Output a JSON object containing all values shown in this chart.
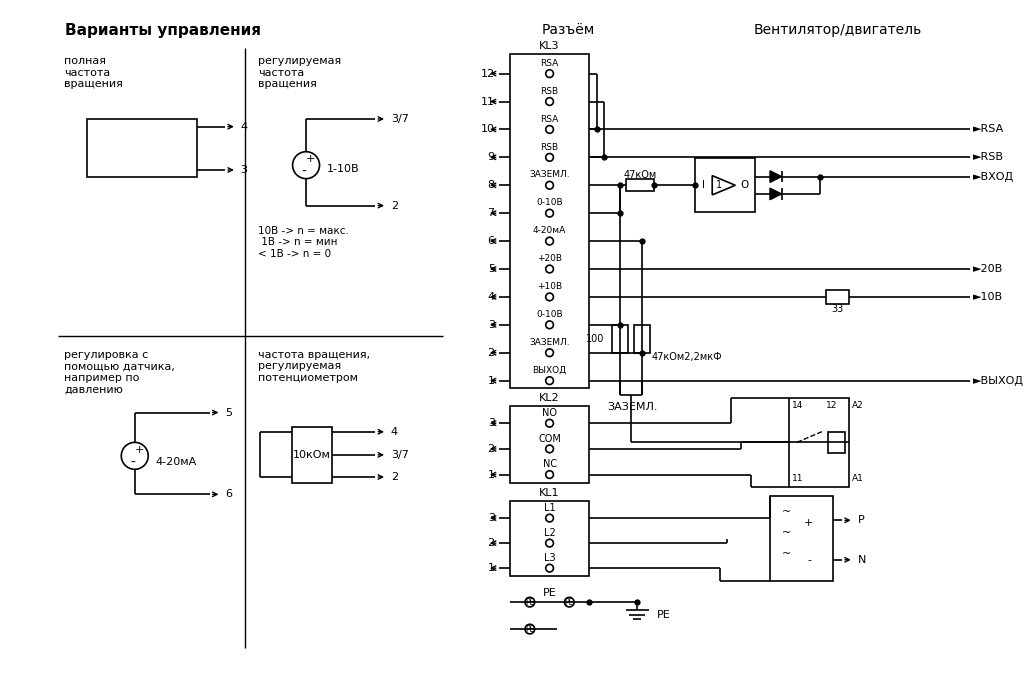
{
  "title_left": "Варианты управления",
  "title_mid": "Разъём",
  "title_right": "Вентилятор/двигатель",
  "bg_color": "#ffffff",
  "kl3_labels": [
    "RSA",
    "RSB",
    "RSA",
    "RSB",
    "ЗАЗЕМЛ.",
    "0-10В",
    "4-20мА",
    "+20В",
    "+10В",
    "0-10В",
    "ЗАЗЕМЛ.",
    "ВЫХОД"
  ],
  "kl3_nums": [
    12,
    11,
    10,
    9,
    8,
    7,
    6,
    5,
    4,
    3,
    2,
    1
  ],
  "kl2_labels": [
    "NO",
    "COM",
    "NC"
  ],
  "kl2_nums": [
    3,
    2,
    1
  ],
  "kl1_labels": [
    "L1",
    "L2",
    "L3"
  ],
  "kl1_nums": [
    3,
    2,
    1
  ]
}
